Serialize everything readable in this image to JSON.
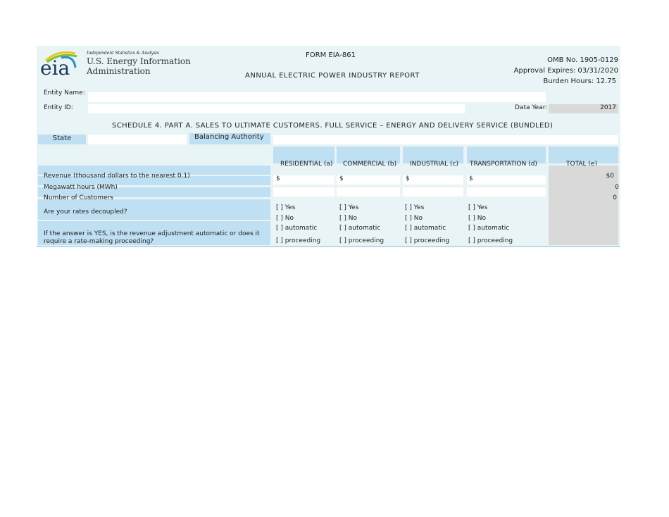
{
  "header": {
    "agency_tagline": "Independent Statistics & Analysis",
    "agency_name_1": "U.S. Energy Information",
    "agency_name_2": "Administration",
    "logo_text": "eia",
    "form": "FORM EIA-861",
    "title": "ANNUAL ELECTRIC POWER INDUSTRY REPORT",
    "omb": "OMB No. 1905-0129",
    "approval": "Approval Expires:  03/31/2020",
    "burden": "Burden Hours: 12.75"
  },
  "entity": {
    "name_label": "Entity Name:",
    "name_value": "",
    "id_label": "Entity ID:",
    "id_value": "",
    "data_year_label": "Data Year:",
    "data_year": "2017"
  },
  "schedule_title": "SCHEDULE 4. PART A. SALES TO ULTIMATE CUSTOMERS. FULL SERVICE – ENERGY AND DELIVERY SERVICE (BUNDLED)",
  "state_label": "State",
  "ba_label": "Balancing Authority",
  "columns": [
    "RESIDENTIAL (a)",
    "COMMERCIAL (b)",
    "INDUSTRIAL (c)",
    "TRANSPORTATION  (d)",
    "TOTAL  (e)"
  ],
  "rows": {
    "revenue": "Revenue (thousand dollars to the nearest 0.1)",
    "mwh": "Megawatt hours (MWh)",
    "customers": "Number of Customers",
    "decoupled": "Are your rates decoupled?",
    "adjustment": "If the answer is YES, is the revenue adjustment automatic or does it require a rate-making proceeding?"
  },
  "dollar": "$",
  "totals": {
    "revenue": "$0",
    "mwh": "0",
    "customers": "0"
  },
  "options": {
    "yes": "[   ] Yes",
    "no": "[   ] No",
    "automatic": "[    ] automatic",
    "proceeding": "[    ] proceeding"
  }
}
